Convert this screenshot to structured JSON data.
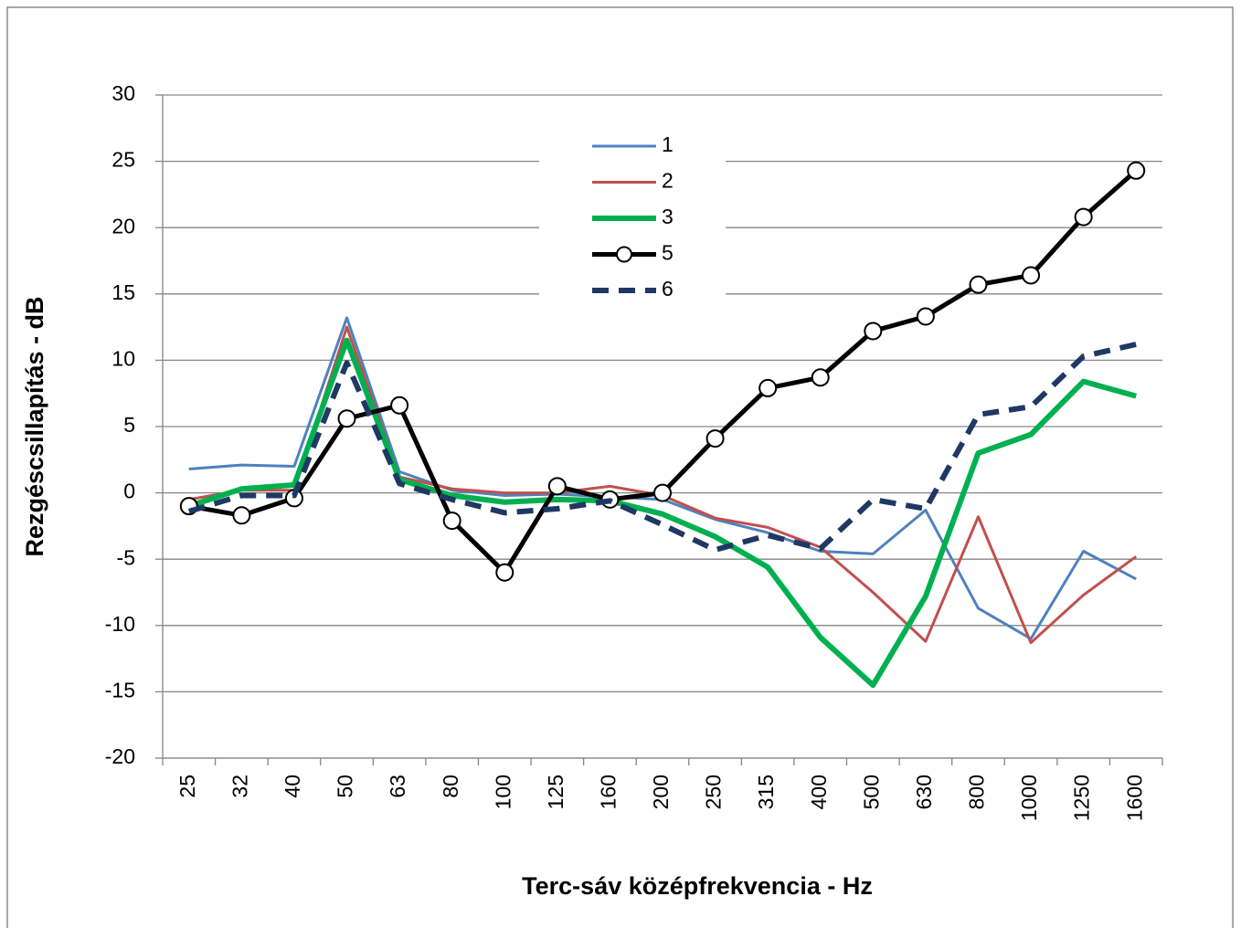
{
  "chart_data": {
    "type": "line",
    "x_label": "Terc-sáv középfrekvencia  -  Hz",
    "y_label": "Rezgéscsillapítás  -  dB",
    "categories": [
      "25",
      "32",
      "40",
      "50",
      "63",
      "80",
      "100",
      "125",
      "160",
      "200",
      "250",
      "315",
      "400",
      "500",
      "630",
      "800",
      "1000",
      "1250",
      "1600"
    ],
    "ylim": [
      -20,
      30
    ],
    "yticks": [
      -20,
      -15,
      -10,
      -5,
      0,
      5,
      10,
      15,
      20,
      25,
      30
    ],
    "grid": true,
    "legend": "top-center",
    "series": [
      {
        "name": "1",
        "color": "#4f81bd",
        "values": [
          1.8,
          2.1,
          2.0,
          13.2,
          1.6,
          0.2,
          -0.2,
          -0.1,
          -0.3,
          -0.5,
          -2.0,
          -3.0,
          -4.4,
          -4.6,
          -1.3,
          -8.7,
          -11.0,
          -4.4,
          -6.5
        ]
      },
      {
        "name": "2",
        "color": "#c0504d",
        "values": [
          -0.5,
          0.2,
          0.2,
          12.5,
          1.2,
          0.3,
          0.0,
          0.0,
          0.5,
          -0.2,
          -1.9,
          -2.6,
          -4.1,
          -7.5,
          -11.2,
          -1.8,
          -11.3,
          -7.7,
          -4.8
        ]
      },
      {
        "name": "3",
        "color": "#00b050",
        "values": [
          -1.0,
          0.3,
          0.6,
          11.5,
          1.0,
          -0.2,
          -0.7,
          -0.5,
          -0.6,
          -1.6,
          -3.3,
          -5.6,
          -10.9,
          -14.5,
          -7.8,
          3.0,
          4.4,
          8.4,
          7.3
        ]
      },
      {
        "name": "5",
        "color": "#000000",
        "marker": "circle",
        "values": [
          -1.0,
          -1.7,
          -0.4,
          5.6,
          6.6,
          -2.1,
          -6.0,
          0.5,
          -0.5,
          0.0,
          4.1,
          7.9,
          8.7,
          12.2,
          13.3,
          15.7,
          16.4,
          20.8,
          24.3
        ]
      },
      {
        "name": "6",
        "color": "#1f3864",
        "dash": "dashed",
        "values": [
          -1.4,
          -0.2,
          -0.2,
          9.8,
          0.7,
          -0.5,
          -1.5,
          -1.2,
          -0.6,
          -2.4,
          -4.3,
          -3.2,
          -4.2,
          -0.5,
          -1.2,
          5.9,
          6.5,
          10.3,
          11.2
        ]
      }
    ]
  }
}
